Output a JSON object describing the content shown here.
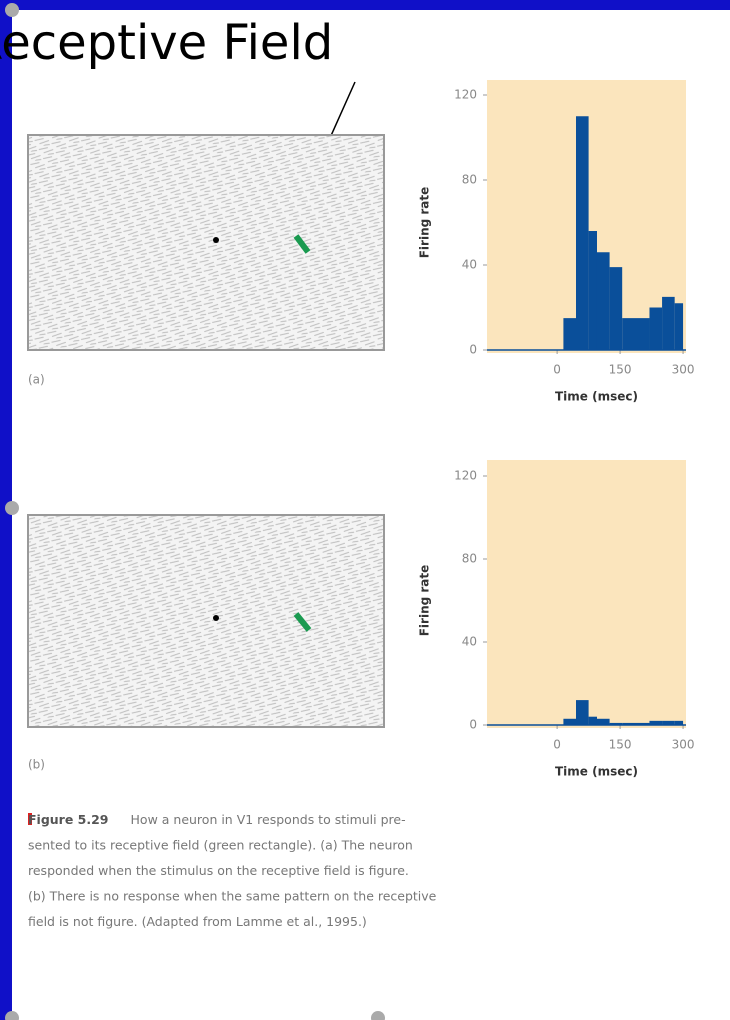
{
  "slide_title": "Receptive Field",
  "panel_labels": [
    "(a)",
    "(b)"
  ],
  "chart_data": [
    {
      "type": "histogram",
      "ylabel": "Firing rate",
      "xlabel": "Time (msec)",
      "color": "#0a4f9a",
      "bins": [
        -165,
        15,
        45,
        75,
        95,
        125,
        155,
        220,
        250,
        280,
        300
      ],
      "values": [
        0,
        15,
        110,
        56,
        46,
        39,
        15,
        20,
        25,
        22
      ],
      "xlim": [
        -167,
        307
      ],
      "xticks": [
        0,
        150,
        300
      ],
      "ylim": [
        0,
        120
      ],
      "yticks": [
        0,
        40,
        80,
        120
      ],
      "grid": false
    },
    {
      "type": "histogram",
      "ylabel": "Firing rate",
      "xlabel": "Time (msec)",
      "color": "#0a4f9a",
      "bins": [
        -165,
        15,
        45,
        75,
        95,
        125,
        155,
        220,
        250,
        280,
        300
      ],
      "values": [
        0,
        3,
        12,
        4,
        3,
        1,
        1,
        2,
        2,
        2
      ],
      "xlim": [
        -167,
        307
      ],
      "xticks": [
        0,
        150,
        300
      ],
      "ylim": [
        0,
        120
      ],
      "yticks": [
        0,
        40,
        80,
        120
      ],
      "grid": false
    }
  ],
  "caption": {
    "label": "Figure 5.29",
    "lines": [
      "How a neuron in V1 responds to stimuli pre-",
      "sented to its receptive field (green rectangle). (a) The neuron",
      "responded when the stimulus on the receptive field is figure.",
      "(b) There is no response when the same pattern on the receptive",
      "field is not figure. (Adapted from Lamme et al., 1995.)"
    ]
  }
}
